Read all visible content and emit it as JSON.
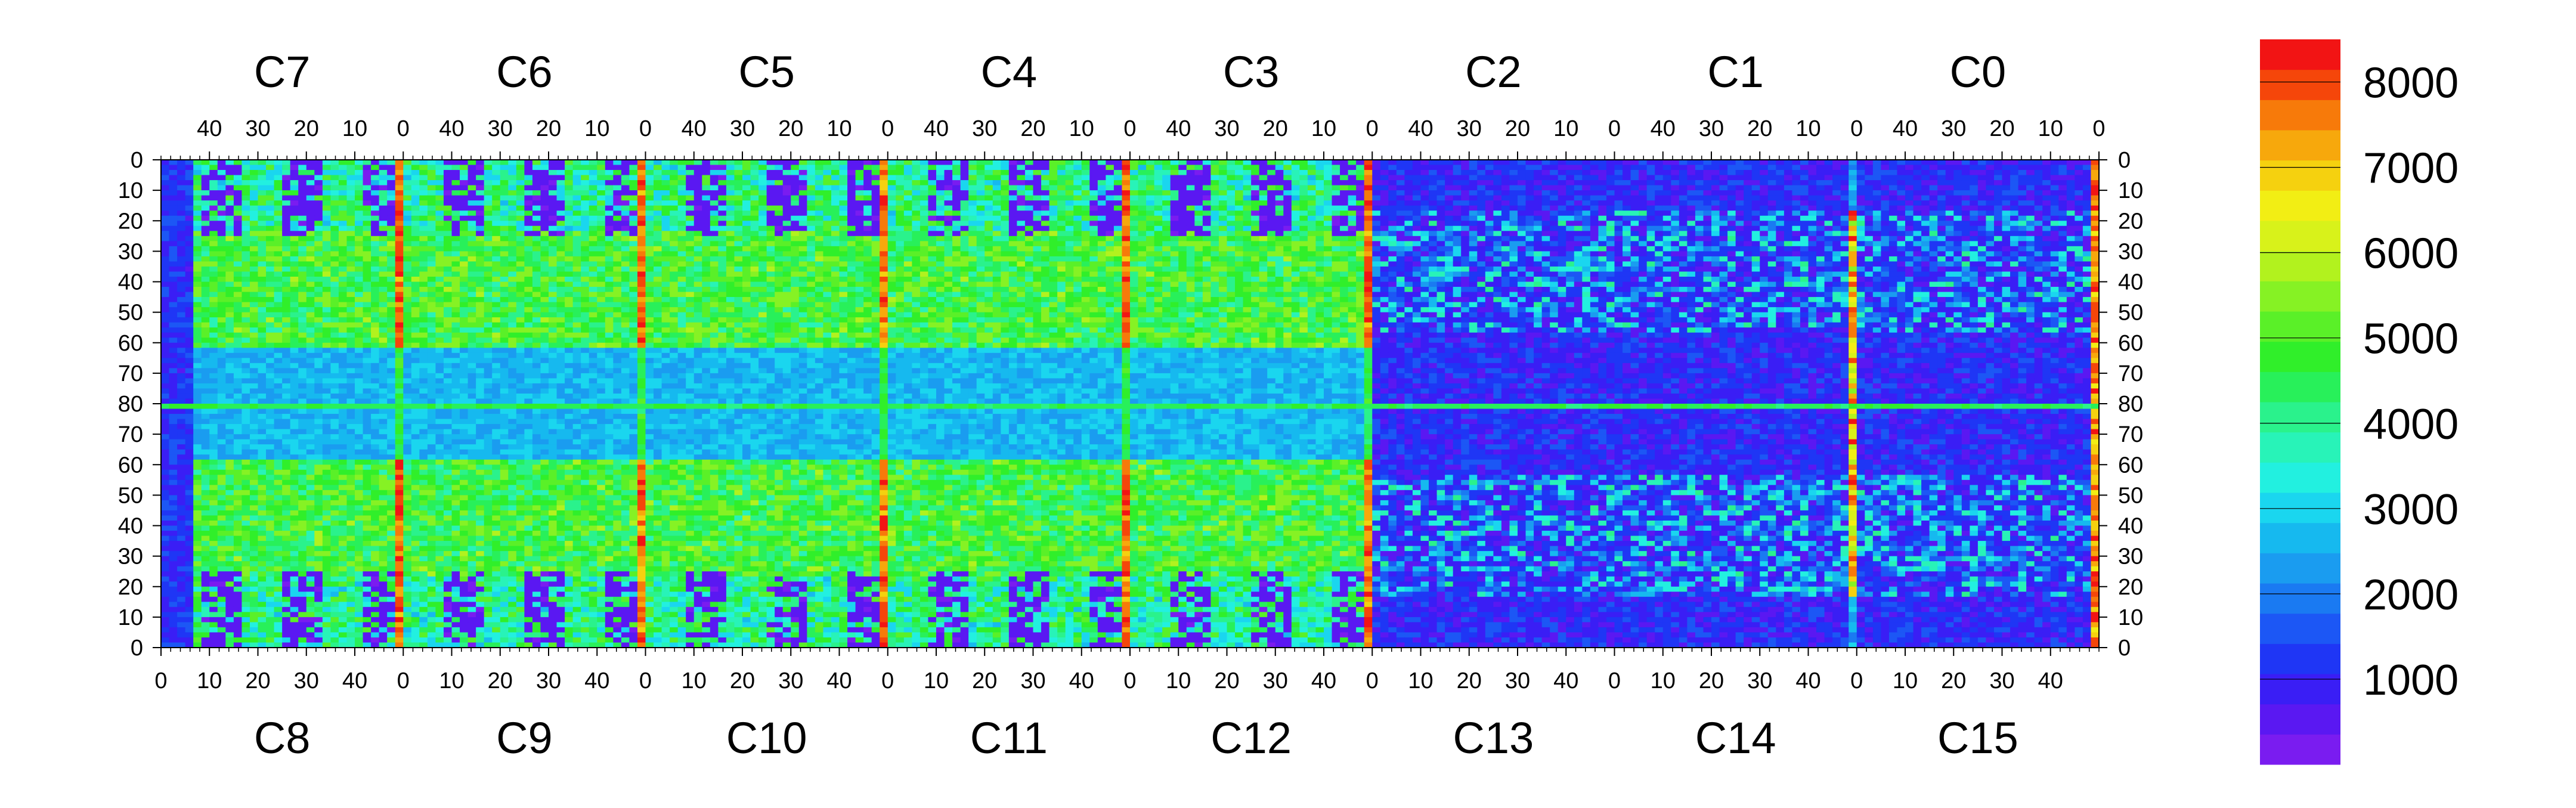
{
  "chart_data": {
    "type": "heatmap",
    "title": "",
    "xlabel": "",
    "ylabel": "",
    "top_chip_labels": [
      "C7",
      "C6",
      "C5",
      "C4",
      "C3",
      "C2",
      "C1",
      "C0"
    ],
    "bottom_chip_labels": [
      "C8",
      "C9",
      "C10",
      "C11",
      "C12",
      "C13",
      "C14",
      "C15"
    ],
    "top_x_tick_labels": [
      "40",
      "30",
      "20",
      "10",
      "0"
    ],
    "bottom_x_tick_labels": [
      "0",
      "10",
      "20",
      "30",
      "40"
    ],
    "x_per_chip_range": [
      0,
      50
    ],
    "y_tick_labels": [
      "0",
      "10",
      "20",
      "30",
      "40",
      "50",
      "60",
      "70",
      "80",
      "70",
      "60",
      "50",
      "40",
      "30",
      "20",
      "10",
      "0"
    ],
    "y_range": [
      0,
      160
    ],
    "colorbar": {
      "min": 0,
      "max": 8500,
      "tick_labels": [
        "1000",
        "2000",
        "3000",
        "4000",
        "5000",
        "6000",
        "7000",
        "8000"
      ],
      "tick_values": [
        1000,
        2000,
        3000,
        4000,
        5000,
        6000,
        7000,
        8000
      ],
      "palette": [
        "#7a1cf0",
        "#5a18f2",
        "#3a1ef5",
        "#1f36f5",
        "#1c57f5",
        "#1a7af2",
        "#1a9cf0",
        "#16b9ef",
        "#1ad6ef",
        "#22f0e0",
        "#28f3b8",
        "#2af28c",
        "#28f05a",
        "#30ef2a",
        "#5af028",
        "#86f224",
        "#b2f21e",
        "#d8f21a",
        "#f2ee14",
        "#f5d10f",
        "#f7a80c",
        "#f77a0a",
        "#f5460a",
        "#f21414"
      ]
    },
    "regions": {
      "dead_chips": [
        "C13",
        "C14",
        "C15",
        "C0",
        "C1",
        "C2"
      ],
      "hot_columns_at_chip_boundaries": true,
      "description_note": ""
    }
  }
}
